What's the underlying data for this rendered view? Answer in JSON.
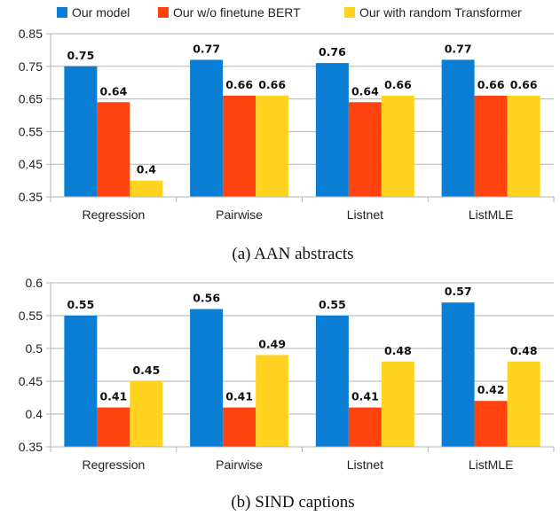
{
  "legend": {
    "items": [
      {
        "label": "Our model",
        "color": "#0a7dd4"
      },
      {
        "label": "Our w/o finetune BERT",
        "color": "#ff420e"
      },
      {
        "label": "Our with random Transformer",
        "color": "#ffd320"
      }
    ]
  },
  "chart_data": [
    {
      "type": "bar",
      "caption": "(a) AAN abstracts",
      "categories": [
        "Regression",
        "Pairwise",
        "Listnet",
        "ListMLE"
      ],
      "series": [
        {
          "name": "Our model",
          "values": [
            0.75,
            0.77,
            0.76,
            0.77
          ],
          "color": "#0a7dd4"
        },
        {
          "name": "Our w/o finetune BERT",
          "values": [
            0.64,
            0.66,
            0.64,
            0.66
          ],
          "color": "#ff420e"
        },
        {
          "name": "Our with random Transformer",
          "values": [
            0.4,
            0.66,
            0.66,
            0.66
          ],
          "color": "#ffd320"
        }
      ],
      "ylim": [
        0.35,
        0.85
      ],
      "yticks": [
        0.35,
        0.45,
        0.55,
        0.65,
        0.75,
        0.85
      ],
      "ytick_labels": [
        "0.35",
        "0.45",
        "0.55",
        "0.65",
        "0.75",
        "0.85"
      ],
      "grid": "horizontal",
      "legend_placement": "top"
    },
    {
      "type": "bar",
      "caption": "(b) SIND captions",
      "categories": [
        "Regression",
        "Pairwise",
        "Listnet",
        "ListMLE"
      ],
      "series": [
        {
          "name": "Our model",
          "values": [
            0.55,
            0.56,
            0.55,
            0.57
          ],
          "color": "#0a7dd4"
        },
        {
          "name": "Our w/o finetune BERT",
          "values": [
            0.41,
            0.41,
            0.41,
            0.42
          ],
          "color": "#ff420e"
        },
        {
          "name": "Our with random Transformer",
          "values": [
            0.45,
            0.49,
            0.48,
            0.48
          ],
          "color": "#ffd320"
        }
      ],
      "ylim": [
        0.35,
        0.6
      ],
      "yticks": [
        0.35,
        0.4,
        0.45,
        0.5,
        0.55,
        0.6
      ],
      "ytick_labels": [
        "0.35",
        "0.4",
        "0.45",
        "0.5",
        "0.55",
        "0.6"
      ],
      "grid": "horizontal",
      "legend_placement": "top"
    }
  ]
}
